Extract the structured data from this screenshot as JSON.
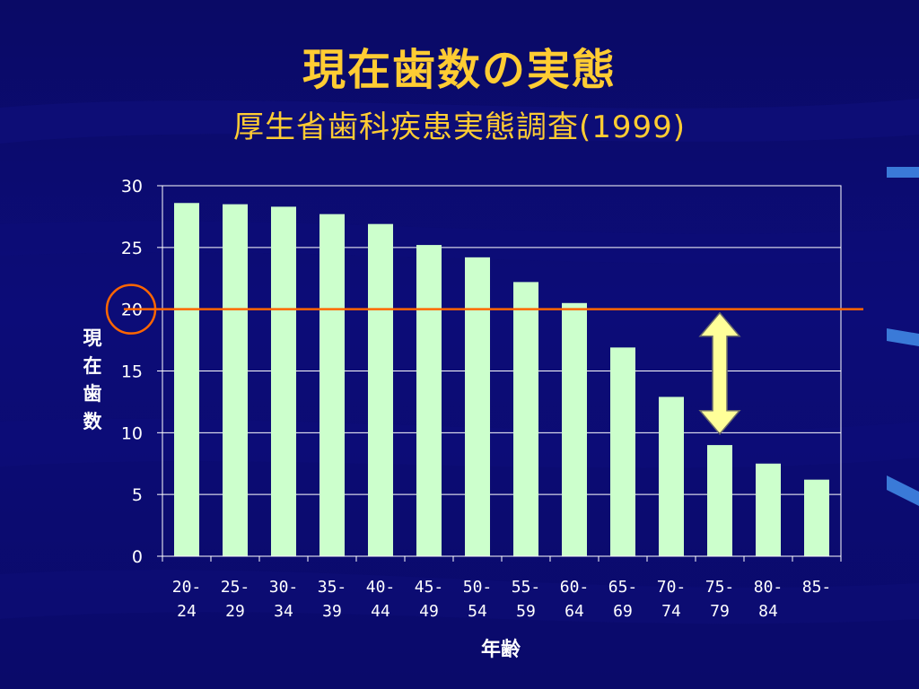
{
  "slide": {
    "title": "現在歯数の実態",
    "subtitle": "厚生省歯科疾患実態調査(1999)"
  },
  "colors": {
    "background": "#0a0a6e",
    "title": "#ffcc33",
    "bar": "#ccffcc",
    "reference_line": "#ff6600",
    "arrow_fill": "#ffff99",
    "arrow_stroke": "#6b6b6b"
  },
  "chart_data": {
    "type": "bar",
    "title": "",
    "xlabel": "年齢",
    "ylabel": "現在歯数",
    "categories": [
      "20-\n24",
      "25-\n29",
      "30-\n34",
      "35-\n39",
      "40-\n44",
      "45-\n49",
      "50-\n54",
      "55-\n59",
      "60-\n64",
      "65-\n69",
      "70-\n74",
      "75-\n79",
      "80-\n84",
      "85-"
    ],
    "values": [
      28.6,
      28.5,
      28.3,
      27.7,
      26.9,
      25.2,
      24.2,
      22.2,
      20.5,
      16.9,
      12.9,
      9.0,
      7.5,
      6.2
    ],
    "ylim": [
      0,
      30
    ],
    "yticks": [
      0,
      5,
      10,
      15,
      20,
      25,
      30
    ],
    "grid": true,
    "legend": "none",
    "annotations": {
      "reference_line_value": 20,
      "circled_tick": 20,
      "double_arrow": {
        "from": 19.7,
        "to": 9.9,
        "at_category": "75-\n79"
      }
    }
  }
}
